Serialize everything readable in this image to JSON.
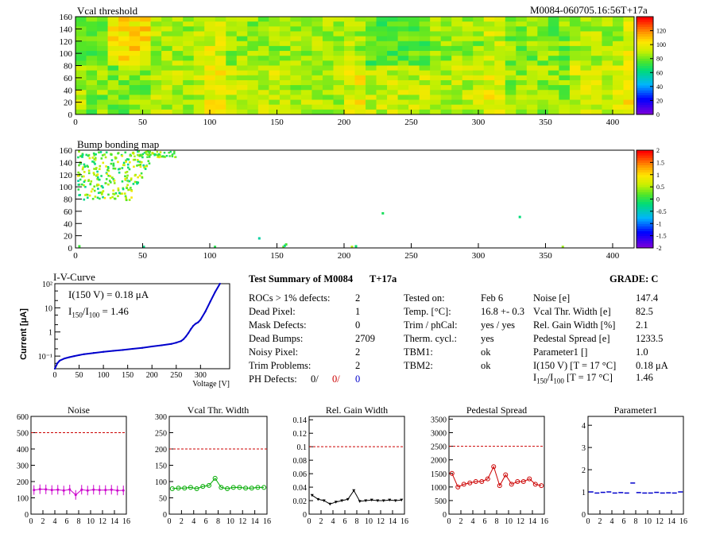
{
  "module_id": "M0084-060705.16:56T+17a",
  "chart_data": [
    {
      "type": "heatmap",
      "title": "Vcal threshold",
      "x_ticks": [
        "0",
        "50",
        "100",
        "150",
        "200",
        "250",
        "300",
        "350",
        "400"
      ],
      "y_ticks": [
        "0",
        "20",
        "40",
        "60",
        "80",
        "100",
        "120",
        "140",
        "160"
      ],
      "xlim": [
        0,
        416
      ],
      "ylim": [
        0,
        160
      ],
      "colorbar_ticks": [
        "0",
        "20",
        "40",
        "60",
        "80",
        "100",
        "120"
      ],
      "colorbar_range": [
        0,
        140
      ],
      "roc_means": [
        [
          105,
          88,
          85,
          86,
          78,
          85,
          82,
          88
        ],
        [
          82,
          90,
          92,
          88,
          92,
          90,
          85,
          94
        ]
      ]
    },
    {
      "type": "heatmap",
      "title": "Bump bonding map",
      "x_ticks": [
        "0",
        "50",
        "100",
        "150",
        "200",
        "250",
        "300",
        "350",
        "400"
      ],
      "y_ticks": [
        "0",
        "20",
        "40",
        "60",
        "80",
        "100",
        "120",
        "140",
        "160"
      ],
      "xlim": [
        0,
        416
      ],
      "ylim": [
        0,
        160
      ],
      "colorbar_ticks": [
        "-2",
        "-1.5",
        "-1",
        "-0.5",
        "0",
        "0.5",
        "1",
        "1.5",
        "2"
      ],
      "colorbar_range": [
        -2,
        2
      ]
    },
    {
      "type": "line",
      "title": "I-V-Curve",
      "xlabel": "Voltage [V]",
      "ylabel": "Current [μA]",
      "x_ticks": [
        "0",
        "50",
        "100",
        "150",
        "200",
        "250",
        "300"
      ],
      "xlim": [
        0,
        360
      ],
      "ylog": true,
      "ylim": [
        0.03,
        100
      ],
      "y_tick_labels": [
        "10⁻¹",
        "1",
        "10",
        "10²"
      ],
      "note1": "I(150 V) = 0.18 μA",
      "note2_main": "I",
      "note2_sub1": "150",
      "note2_mid": "/I",
      "note2_sub2": "100",
      "note2_val": " =  1.46",
      "x": [
        0,
        5,
        10,
        20,
        30,
        40,
        50,
        60,
        80,
        100,
        120,
        140,
        160,
        180,
        200,
        220,
        240,
        250,
        260,
        265,
        270,
        275,
        280,
        285,
        290,
        295,
        300,
        310,
        320,
        330,
        340
      ],
      "y": [
        0.03,
        0.05,
        0.065,
        0.08,
        0.09,
        0.1,
        0.11,
        0.12,
        0.135,
        0.15,
        0.165,
        0.18,
        0.2,
        0.22,
        0.25,
        0.28,
        0.32,
        0.36,
        0.42,
        0.5,
        0.65,
        0.9,
        1.3,
        1.8,
        2.2,
        2.5,
        3.2,
        7,
        18,
        45,
        100
      ],
      "color": "#0000cc"
    },
    {
      "type": "line",
      "title": "Noise",
      "x_ticks": [
        "0",
        "2",
        "4",
        "6",
        "8",
        "10",
        "12",
        "14",
        "16"
      ],
      "y_ticks": [
        "0",
        "100",
        "200",
        "300",
        "400",
        "500",
        "600"
      ],
      "xlim": [
        0,
        16
      ],
      "ylim": [
        0,
        600
      ],
      "limit": 500,
      "x": [
        0.5,
        1.5,
        2.5,
        3.5,
        4.5,
        5.5,
        6.5,
        7.5,
        8.5,
        9.5,
        10.5,
        11.5,
        12.5,
        13.5,
        14.5,
        15.5
      ],
      "values": [
        148,
        153,
        152,
        148,
        150,
        145,
        151,
        118,
        150,
        145,
        150,
        148,
        148,
        150,
        145,
        146
      ],
      "color": "#cc00cc"
    },
    {
      "type": "line",
      "title": "Vcal Thr. Width",
      "x_ticks": [
        "0",
        "2",
        "4",
        "6",
        "8",
        "10",
        "12",
        "14",
        "16"
      ],
      "y_ticks": [
        "0",
        "50",
        "100",
        "150",
        "200",
        "250",
        "300"
      ],
      "xlim": [
        0,
        16
      ],
      "ylim": [
        0,
        300
      ],
      "limit": 200,
      "x": [
        0.5,
        1.5,
        2.5,
        3.5,
        4.5,
        5.5,
        6.5,
        7.5,
        8.5,
        9.5,
        10.5,
        11.5,
        12.5,
        13.5,
        14.5,
        15.5
      ],
      "values": [
        78,
        80,
        80,
        82,
        78,
        85,
        88,
        110,
        82,
        78,
        82,
        82,
        80,
        80,
        82,
        82
      ],
      "color": "#00aa00"
    },
    {
      "type": "line",
      "title": "Rel. Gain Width",
      "x_ticks": [
        "0",
        "2",
        "4",
        "6",
        "8",
        "10",
        "12",
        "14",
        "16"
      ],
      "y_ticks": [
        "0",
        "0.02",
        "0.04",
        "0.06",
        "0.08",
        "0.1",
        "0.12",
        "0.14"
      ],
      "xlim": [
        0,
        16
      ],
      "ylim": [
        0,
        0.145
      ],
      "limit": 0.1,
      "x": [
        0.5,
        1.5,
        2.5,
        3.5,
        4.5,
        5.5,
        6.5,
        7.5,
        8.5,
        9.5,
        10.5,
        11.5,
        12.5,
        13.5,
        14.5,
        15.5
      ],
      "values": [
        0.028,
        0.022,
        0.02,
        0.015,
        0.018,
        0.02,
        0.022,
        0.035,
        0.019,
        0.02,
        0.021,
        0.02,
        0.02,
        0.021,
        0.02,
        0.021
      ],
      "color": "#000000"
    },
    {
      "type": "line",
      "title": "Pedestal Spread",
      "x_ticks": [
        "0",
        "2",
        "4",
        "6",
        "8",
        "10",
        "12",
        "14",
        "16"
      ],
      "y_ticks": [
        "0",
        "500",
        "1000",
        "1500",
        "2000",
        "2500",
        "3000",
        "3500"
      ],
      "xlim": [
        0,
        16
      ],
      "ylim": [
        0,
        3600
      ],
      "limit": 2500,
      "x": [
        0.5,
        1.5,
        2.5,
        3.5,
        4.5,
        5.5,
        6.5,
        7.5,
        8.5,
        9.5,
        10.5,
        11.5,
        12.5,
        13.5,
        14.5,
        15.5
      ],
      "values": [
        1500,
        1000,
        1100,
        1150,
        1200,
        1200,
        1300,
        1750,
        1050,
        1450,
        1100,
        1200,
        1200,
        1300,
        1100,
        1050
      ],
      "color": "#cc0000"
    },
    {
      "type": "line",
      "title": "Parameter1",
      "x_ticks": [
        "0",
        "2",
        "4",
        "6",
        "8",
        "10",
        "12",
        "14",
        "16"
      ],
      "y_ticks": [
        "0",
        "1",
        "2",
        "3",
        "4"
      ],
      "xlim": [
        0,
        16
      ],
      "ylim": [
        0,
        4.4
      ],
      "x": [
        0.5,
        1.5,
        2.5,
        3.5,
        4.5,
        5.5,
        6.5,
        7.5,
        8.5,
        9.5,
        10.5,
        11.5,
        12.5,
        13.5,
        14.5,
        15.5
      ],
      "values": [
        1.0,
        0.95,
        0.98,
        1.0,
        0.95,
        0.97,
        0.95,
        1.4,
        0.97,
        0.95,
        0.95,
        0.98,
        0.95,
        0.96,
        0.95,
        1.0
      ],
      "color": "#0000cc"
    }
  ],
  "summary": {
    "title": "Test Summary of M0084",
    "tag": "T+17a",
    "grade": "GRADE:  C",
    "rows": [
      {
        "label": "ROCs > 1% defects:",
        "value": "2"
      },
      {
        "label": "Dead Pixel:",
        "value": "1"
      },
      {
        "label": "Mask Defects:",
        "value": "0"
      },
      {
        "label": "Dead Bumps:",
        "value": "2709"
      },
      {
        "label": "Noisy Pixel:",
        "value": "2"
      },
      {
        "label": "Trim Problems:",
        "value": "2"
      }
    ],
    "ph_label": "PH Defects:",
    "ph_values": [
      "0/",
      "0/",
      "0"
    ],
    "ph_colors": [
      "#000000",
      "#cc0000",
      "#0000cc"
    ],
    "test_rows": [
      {
        "label": "Tested on:",
        "value": "Feb 6"
      },
      {
        "label": "Temp. [°C]:",
        "value": "16.8 +- 0.3"
      },
      {
        "label": "Trim / phCal:",
        "value": "yes / yes"
      },
      {
        "label": "Therm. cycl.:",
        "value": "yes"
      },
      {
        "label": "TBM1:",
        "value": "ok"
      },
      {
        "label": "TBM2:",
        "value": "ok"
      }
    ],
    "result_rows": [
      {
        "label": "Noise [e]",
        "value": "147.4"
      },
      {
        "label": "Vcal Thr. Width [e]",
        "value": "82.5"
      },
      {
        "label": "Rel. Gain Width [%]",
        "value": "2.1"
      },
      {
        "label": "Pedestal Spread [e]",
        "value": "1233.5"
      },
      {
        "label": "Parameter1 []",
        "value": "1.0"
      },
      {
        "label": "I(150 V) [T = 17 °C]",
        "value": "0.18 μA"
      }
    ],
    "ratio_row": {
      "main": "I",
      "sub1": "150",
      "mid": "/I",
      "sub2": "100",
      "tail": "  [T = 17 °C]",
      "value": "1.46"
    }
  }
}
